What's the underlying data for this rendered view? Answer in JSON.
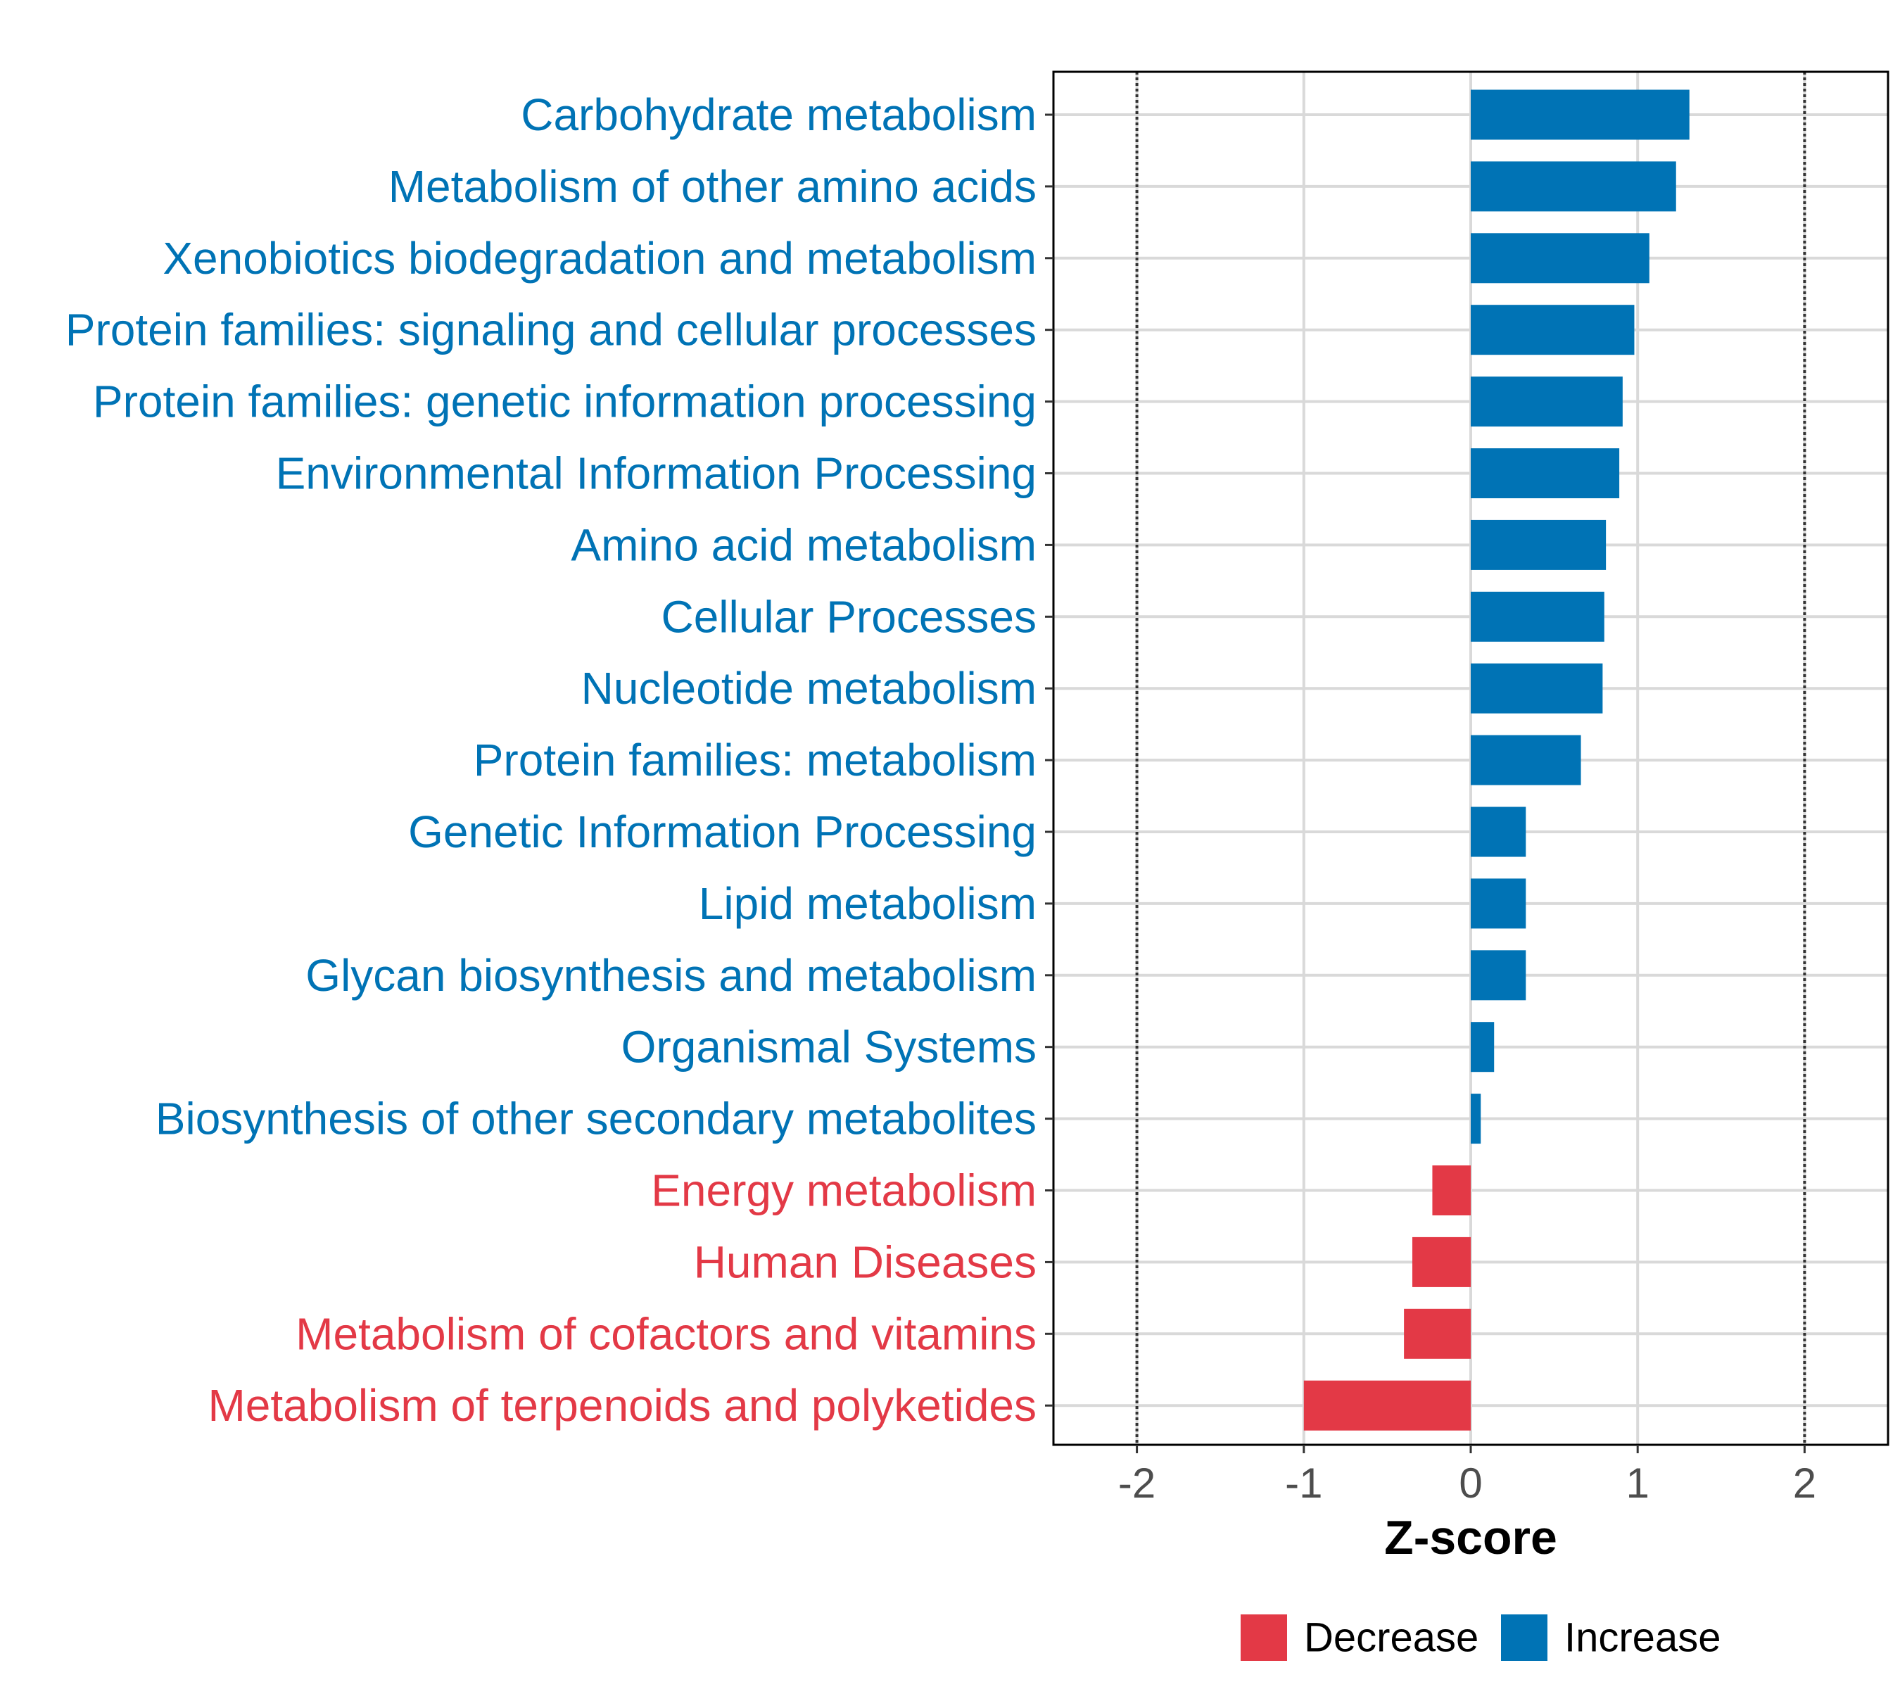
{
  "chart_data": {
    "type": "bar",
    "orientation": "horizontal",
    "title": "",
    "xlabel": "Z-score",
    "ylabel": "",
    "xlim": [
      -2.5,
      2.5
    ],
    "xticks": [
      "-2",
      "-1",
      "0",
      "1",
      "2"
    ],
    "tick_values": [
      -2,
      -1,
      0,
      1,
      2
    ],
    "reference_lines": [
      -2,
      2
    ],
    "grid": true,
    "categories": [
      "Carbohydrate metabolism",
      "Metabolism of other amino acids",
      "Xenobiotics biodegradation and metabolism",
      "Protein families: signaling and cellular processes",
      "Protein families: genetic information processing",
      "Environmental Information Processing",
      "Amino acid metabolism",
      "Cellular Processes",
      "Nucleotide metabolism",
      "Protein families: metabolism",
      "Genetic Information Processing",
      "Lipid metabolism",
      "Glycan biosynthesis and metabolism",
      "Organismal Systems",
      "Biosynthesis of other secondary metabolites",
      "Energy metabolism",
      "Human Diseases",
      "Metabolism of cofactors and vitamins",
      "Metabolism of terpenoids and polyketides"
    ],
    "values": [
      1.31,
      1.23,
      1.07,
      0.98,
      0.91,
      0.89,
      0.81,
      0.8,
      0.79,
      0.66,
      0.33,
      0.33,
      0.33,
      0.14,
      0.06,
      -0.23,
      -0.35,
      -0.4,
      -1.0
    ],
    "groups": [
      "Increase",
      "Increase",
      "Increase",
      "Increase",
      "Increase",
      "Increase",
      "Increase",
      "Increase",
      "Increase",
      "Increase",
      "Increase",
      "Increase",
      "Increase",
      "Increase",
      "Increase",
      "Decrease",
      "Decrease",
      "Decrease",
      "Decrease"
    ],
    "colors": {
      "Increase": "#0073b5",
      "Decrease": "#e33946"
    },
    "legend": {
      "placement": "bottom",
      "items": [
        {
          "label": "Decrease",
          "color": "#e33946"
        },
        {
          "label": "Increase",
          "color": "#0073b5"
        }
      ]
    }
  }
}
